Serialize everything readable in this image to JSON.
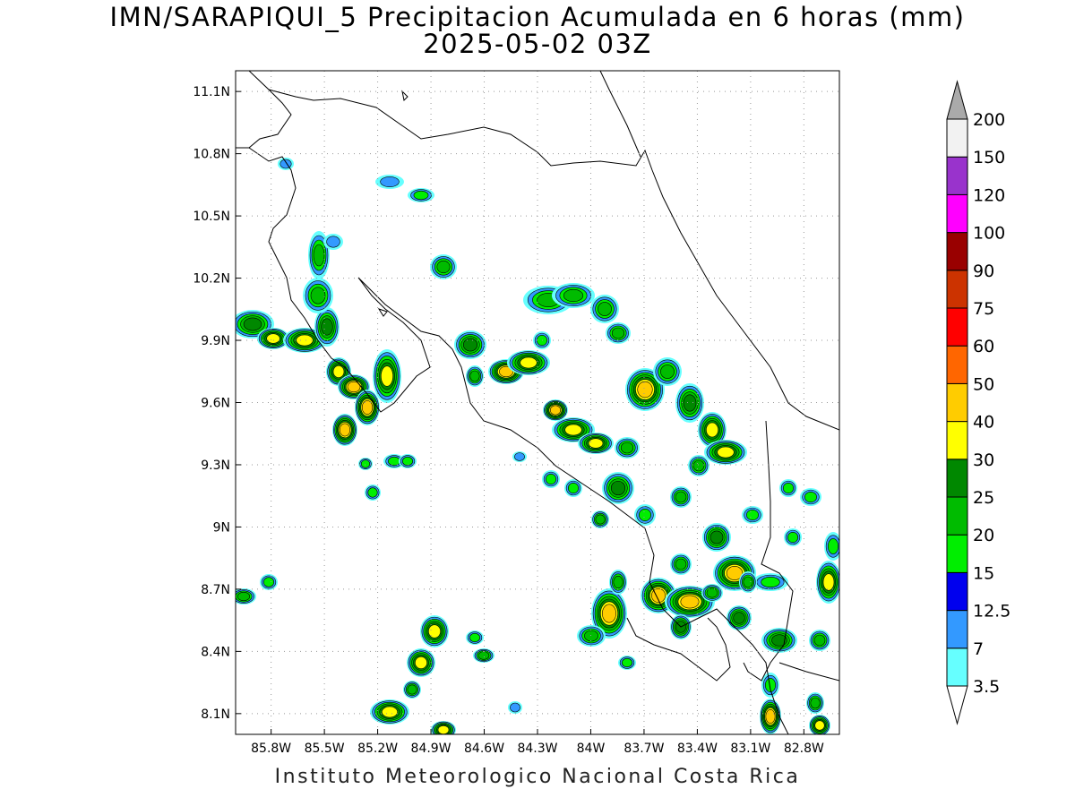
{
  "title_line1": "IMN/SARAPIQUI_5 Precipitacion Acumulada en 6 horas (mm)",
  "title_line2": "2025-05-02 03Z",
  "footer": "Instituto Meteorologico Nacional Costa Rica",
  "map": {
    "lon_range": [
      -86.0,
      -82.6
    ],
    "lat_range": [
      8.0,
      11.2
    ],
    "lon_ticks": [
      "85.8W",
      "85.5W",
      "85.2W",
      "84.9W",
      "84.6W",
      "84.3W",
      "84W",
      "83.7W",
      "83.4W",
      "83.1W",
      "82.8W"
    ],
    "lat_ticks": [
      "11.1N",
      "10.8N",
      "10.5N",
      "10.2N",
      "9.9N",
      "9.6N",
      "9.3N",
      "9N",
      "8.7N",
      "8.4N",
      "8.1N"
    ],
    "grid": "dotted"
  },
  "colorbar": {
    "labels": [
      "3.5",
      "7",
      "12.5",
      "15",
      "20",
      "25",
      "30",
      "40",
      "50",
      "60",
      "75",
      "90",
      "100",
      "120",
      "150",
      "200"
    ],
    "colors": [
      "#ffffff",
      "#66ffff",
      "#3399ff",
      "#0000ee",
      "#00ee00",
      "#00bb00",
      "#008800",
      "#ffff00",
      "#ffcc00",
      "#ff6600",
      "#ff0000",
      "#cc3300",
      "#990000",
      "#ff00ff",
      "#9933cc",
      "#f2f2f2",
      "#aaaaaa"
    ]
  }
}
